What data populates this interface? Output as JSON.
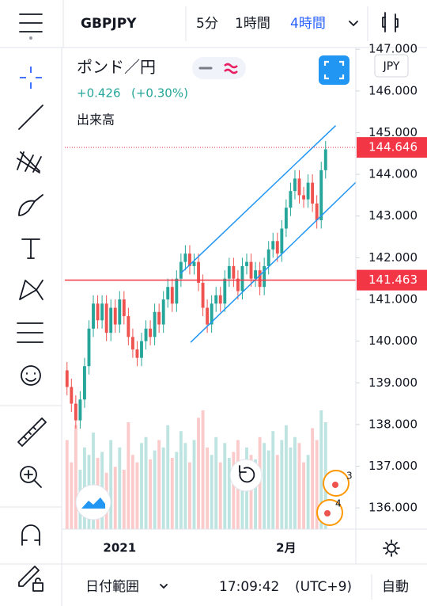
{
  "header": {
    "symbol": "GBPJPY",
    "intervals": [
      "5分",
      "1時間",
      "4時間"
    ],
    "active_interval": 2
  },
  "legend": {
    "name": "ポンド／円",
    "change": "+0.426",
    "change_pct": "(+0.30%)",
    "volume_label": "出来高"
  },
  "currency": "JPY",
  "chart_data": {
    "type": "candlestick",
    "up_color": "#26a69a",
    "down_color": "#ef5350",
    "categories": [
      null,
      null,
      null,
      null,
      null,
      null,
      null,
      null,
      null,
      null,
      null,
      null,
      "2021",
      null,
      null,
      null,
      null,
      null,
      null,
      null,
      null,
      null,
      null,
      null,
      null,
      null,
      null,
      null,
      null,
      null,
      null,
      null,
      null,
      null,
      null,
      null,
      null,
      null,
      null,
      null,
      null,
      null,
      null,
      null,
      null,
      null,
      null,
      null,
      null,
      null,
      "2月",
      null,
      null,
      null,
      null,
      null,
      null,
      null,
      null,
      null
    ],
    "open": [
      139.3,
      138.9,
      138.5,
      138.1,
      138.6,
      139.4,
      140.3,
      140.9,
      140.5,
      140.9,
      140.2,
      140.8,
      140.4,
      141.0,
      140.6,
      140.1,
      139.8,
      139.6,
      140.0,
      140.3,
      140.1,
      140.7,
      140.4,
      141.0,
      141.3,
      140.9,
      141.5,
      141.9,
      142.1,
      141.8,
      141.9,
      141.4,
      140.8,
      140.4,
      140.9,
      141.1,
      140.9,
      141.5,
      141.8,
      141.5,
      141.2,
      141.8,
      141.9,
      141.5,
      141.7,
      141.3,
      141.8,
      142.2,
      142.4,
      142.1,
      142.7,
      143.2,
      143.6,
      143.9,
      143.5,
      143.4,
      143.8,
      143.3,
      142.9,
      144.1
    ],
    "high": [
      139.5,
      139.1,
      138.7,
      138.8,
      139.6,
      140.5,
      141.1,
      141.1,
      141.1,
      141.1,
      141.0,
      141.0,
      141.2,
      141.2,
      140.8,
      140.3,
      140.0,
      140.2,
      140.5,
      140.5,
      140.9,
      140.9,
      141.2,
      141.5,
      141.5,
      141.7,
      142.1,
      142.3,
      142.3,
      142.1,
      142.1,
      141.6,
      141.0,
      141.1,
      141.3,
      141.3,
      141.7,
      142.0,
      142.0,
      141.7,
      142.0,
      142.1,
      142.1,
      141.9,
      141.9,
      142.0,
      142.4,
      142.6,
      142.6,
      142.9,
      143.4,
      143.8,
      144.1,
      144.1,
      143.7,
      144.0,
      144.0,
      143.5,
      144.3,
      144.8
    ],
    "low": [
      138.7,
      138.3,
      137.9,
      137.9,
      138.4,
      139.2,
      140.1,
      140.3,
      140.3,
      140.0,
      140.0,
      140.2,
      140.2,
      140.4,
      139.9,
      139.6,
      139.4,
      139.4,
      139.8,
      139.9,
      139.9,
      140.2,
      140.2,
      140.8,
      140.7,
      140.7,
      141.3,
      141.7,
      141.6,
      141.6,
      141.2,
      140.6,
      140.2,
      140.2,
      140.7,
      140.7,
      140.7,
      141.3,
      141.3,
      141.0,
      141.0,
      141.6,
      141.3,
      141.3,
      141.1,
      141.1,
      141.6,
      142.0,
      141.9,
      141.9,
      142.5,
      143.0,
      143.4,
      143.3,
      143.2,
      143.2,
      143.1,
      142.7,
      142.7,
      143.9
    ],
    "close": [
      138.9,
      138.5,
      138.1,
      138.6,
      139.4,
      140.3,
      140.9,
      140.5,
      140.9,
      140.2,
      140.8,
      140.4,
      141.0,
      140.6,
      140.1,
      139.8,
      139.6,
      140.0,
      140.3,
      140.1,
      140.7,
      140.4,
      141.0,
      141.3,
      140.9,
      141.5,
      141.9,
      142.1,
      141.8,
      141.9,
      141.4,
      140.8,
      140.4,
      140.9,
      141.1,
      140.9,
      141.5,
      141.8,
      141.5,
      141.2,
      141.8,
      141.9,
      141.5,
      141.7,
      141.3,
      141.8,
      142.2,
      142.4,
      142.1,
      142.7,
      143.2,
      143.6,
      143.9,
      143.5,
      143.4,
      143.8,
      143.3,
      142.9,
      144.1,
      144.6
    ],
    "volume": [
      60,
      45,
      70,
      40,
      55,
      50,
      65,
      48,
      52,
      38,
      60,
      42,
      55,
      40,
      72,
      50,
      45,
      58,
      62,
      47,
      53,
      60,
      55,
      70,
      48,
      52,
      66,
      58,
      45,
      60,
      75,
      80,
      55,
      50,
      62,
      45,
      58,
      48,
      52,
      60,
      44,
      55,
      50,
      47,
      62,
      58,
      53,
      66,
      50,
      60,
      70,
      55,
      62,
      58,
      45,
      50,
      68,
      60,
      80,
      72
    ],
    "xlim": [
      -0.5,
      65.9
    ],
    "ylim": [
      135.49,
      147.08
    ],
    "yticks": [
      {
        "value": 136,
        "label": "136.000"
      },
      {
        "value": 137,
        "label": "137.000"
      },
      {
        "value": 138,
        "label": "138.000"
      },
      {
        "value": 139,
        "label": "139.000"
      },
      {
        "value": 140,
        "label": "140.000"
      },
      {
        "value": 141,
        "label": "141.000"
      },
      {
        "value": 142,
        "label": "142.000"
      },
      {
        "value": 143,
        "label": "143.000"
      },
      {
        "value": 144,
        "label": "144.000"
      },
      {
        "value": 145,
        "label": "145.000"
      },
      {
        "value": 146,
        "label": "146.000"
      },
      {
        "value": 147,
        "label": "147.000"
      }
    ],
    "price_lines": [
      {
        "value": 144.646,
        "color": "#f23645",
        "style": "dotted"
      },
      {
        "value": 141.463,
        "color": "#f23645",
        "style": "solid"
      }
    ],
    "channel": [
      {
        "color": "#2196f3",
        "x": [
          25.9,
          61.3
        ],
        "y": [
          141.62,
          145.17
        ]
      },
      {
        "color": "#2196f3",
        "x": [
          28.2,
          65.9
        ],
        "y": [
          139.97,
          143.81
        ]
      }
    ]
  },
  "badges": [
    "3",
    "4"
  ],
  "footer": {
    "range": "日付範囲",
    "time": "17:09:42",
    "tz": "(UTC+9)",
    "mode": "自動"
  }
}
